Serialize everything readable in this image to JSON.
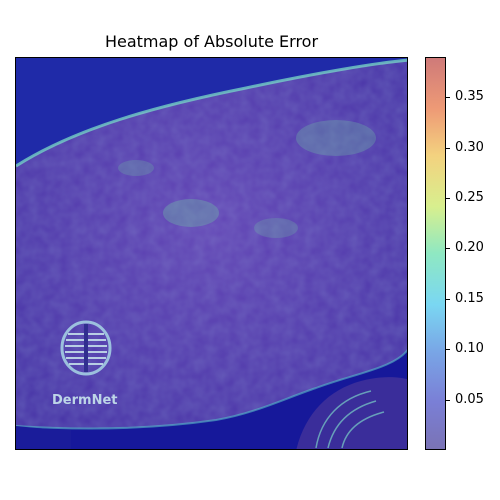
{
  "chart_data": {
    "type": "heatmap",
    "title": "Heatmap of Absolute Error",
    "colorbar": {
      "min": 0.0,
      "max": 0.39,
      "ticks": [
        0.05,
        0.1,
        0.15,
        0.2,
        0.25,
        0.3,
        0.35
      ],
      "tick_labels": [
        "0.05",
        "0.10",
        "0.15",
        "0.20",
        "0.25",
        "0.30",
        "0.35"
      ],
      "colormap": "jet (semi-transparent overlay)"
    },
    "overlay_text": "DermNet",
    "colors": {
      "background_region": "#16189a",
      "skin_region": "#5a3fb0",
      "edge_highlight": "#6fc6c2",
      "low": "#7a73b5",
      "high": "#cf7a79"
    }
  }
}
